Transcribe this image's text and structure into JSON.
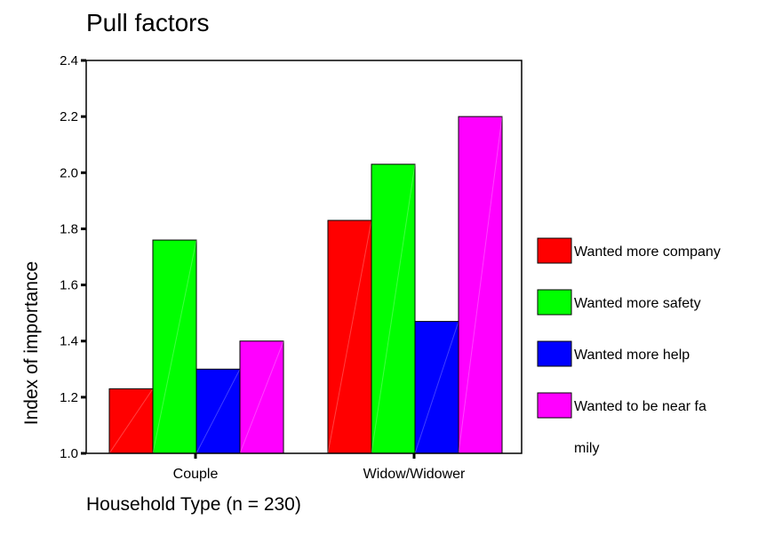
{
  "chart_data": {
    "type": "bar",
    "title": "Pull factors",
    "xlabel": "Household Type (n = 230)",
    "ylabel": "Index of importance",
    "categories": [
      "Couple",
      "Widow/Widower"
    ],
    "ylim": [
      1.0,
      2.4
    ],
    "yticks": [
      "1.0",
      "1.2",
      "1.4",
      "1.6",
      "1.8",
      "2.0",
      "2.2",
      "2.4"
    ],
    "grid": false,
    "legend_position": "right",
    "series": [
      {
        "name": "Wanted more company",
        "color": "#ff0000",
        "values": [
          1.23,
          1.83
        ]
      },
      {
        "name": "Wanted more safety",
        "color": "#00ff00",
        "values": [
          1.76,
          2.03
        ]
      },
      {
        "name": "Wanted more help",
        "color": "#0000ff",
        "values": [
          1.3,
          1.47
        ]
      },
      {
        "name": "Wanted to be near family",
        "color": "#ff00ff",
        "values": [
          1.4,
          2.2
        ]
      }
    ],
    "legend_lines": [
      [
        "Wanted more company"
      ],
      [
        "Wanted more safety"
      ],
      [
        "Wanted more help"
      ],
      [
        "Wanted to be near fa",
        "mily"
      ]
    ]
  }
}
